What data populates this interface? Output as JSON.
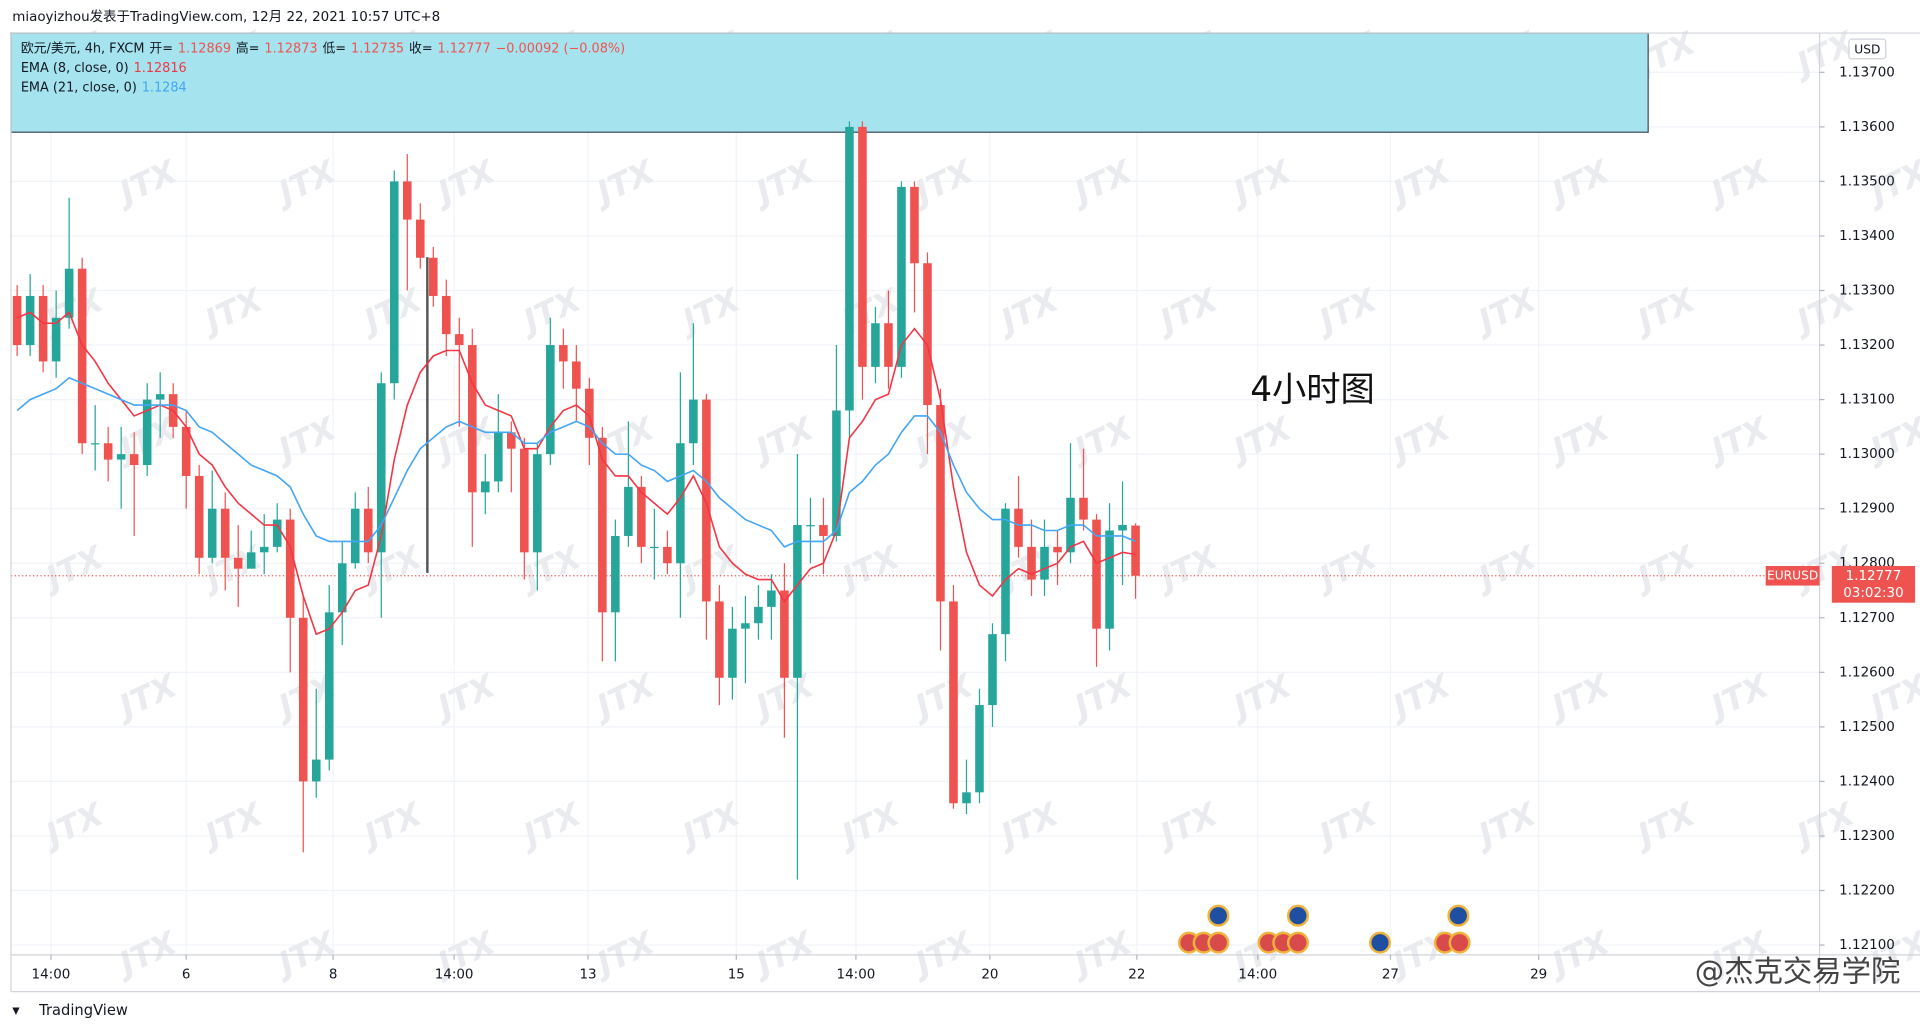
{
  "publisher_line": "miaoyizhou发表于TradingView.com, 12月 22, 2021 10:57 UTC+8",
  "branding": "TradingView",
  "watermark": "JTX",
  "corner_watermark": "@杰克交易学院",
  "chart_data": {
    "type": "candlestick",
    "symbol": "欧元/美元, 4h, FXCM",
    "ohlc_labels": [
      "开=",
      "高=",
      "低=",
      "收="
    ],
    "change_label": "−0.00092 (−0.08%)",
    "annotation": "4小时图",
    "currency": "USD",
    "symbol_tag": "EURUSD",
    "countdown": "03:02:30",
    "up_color": "#26a69a",
    "down_color": "#ef5350",
    "grid": true,
    "candles": {
      "open": [
        1.1329,
        1.132,
        1.1329,
        1.1317,
        1.1325,
        1.1334,
        1.1302,
        1.1302,
        1.1299,
        1.13,
        1.1298,
        1.131,
        1.1311,
        1.1305,
        1.1296,
        1.1281,
        1.129,
        1.1281,
        1.1279,
        1.1282,
        1.1283,
        1.1288,
        1.127,
        1.124,
        1.1244,
        1.1271,
        1.128,
        1.129,
        1.1282,
        1.1313,
        1.135,
        1.1343,
        1.1336,
        1.1329,
        1.1322,
        1.132,
        1.1293,
        1.1295,
        1.1304,
        1.1301,
        1.1282,
        1.13,
        1.132,
        1.1317,
        1.1312,
        1.1303,
        1.1271,
        1.1285,
        1.1294,
        1.1283,
        1.1283,
        1.128,
        1.1302,
        1.131,
        1.1273,
        1.1259,
        1.1268,
        1.1269,
        1.1272,
        1.1275,
        1.1259,
        1.1287,
        1.1287,
        1.1285,
        1.1308,
        1.136,
        1.1316,
        1.1324,
        1.1316,
        1.1349,
        1.1335,
        1.1309,
        1.1273,
        1.1236,
        1.1238,
        1.1254,
        1.1267,
        1.129,
        1.1283,
        1.1277,
        1.1283,
        1.1282,
        1.1292,
        1.1288,
        1.1268,
        1.1286,
        1.12869
      ],
      "high": [
        1.1331,
        1.1333,
        1.1331,
        1.133,
        1.1347,
        1.1336,
        1.1309,
        1.1305,
        1.1305,
        1.1304,
        1.1313,
        1.1315,
        1.1313,
        1.1308,
        1.1298,
        1.1297,
        1.1293,
        1.1287,
        1.1286,
        1.1289,
        1.1291,
        1.129,
        1.1274,
        1.1257,
        1.1276,
        1.1284,
        1.1293,
        1.1294,
        1.1315,
        1.1352,
        1.1355,
        1.1346,
        1.1338,
        1.1332,
        1.1325,
        1.1323,
        1.13,
        1.1311,
        1.1306,
        1.1303,
        1.1302,
        1.1325,
        1.1323,
        1.132,
        1.1314,
        1.1305,
        1.1288,
        1.1306,
        1.1296,
        1.129,
        1.1286,
        1.1315,
        1.1324,
        1.1311,
        1.1276,
        1.1272,
        1.1274,
        1.1276,
        1.1278,
        1.128,
        1.13,
        1.1292,
        1.1292,
        1.132,
        1.1361,
        1.1361,
        1.1327,
        1.133,
        1.135,
        1.135,
        1.1337,
        1.1312,
        1.1276,
        1.1244,
        1.1257,
        1.1269,
        1.1291,
        1.1296,
        1.1288,
        1.1288,
        1.1286,
        1.1302,
        1.1301,
        1.1289,
        1.1291,
        1.1295,
        1.12873
      ],
      "low": [
        1.1318,
        1.1318,
        1.1315,
        1.1314,
        1.1323,
        1.13,
        1.1297,
        1.1295,
        1.129,
        1.1285,
        1.1296,
        1.1303,
        1.1303,
        1.129,
        1.1278,
        1.128,
        1.1275,
        1.1272,
        1.1279,
        1.1278,
        1.1282,
        1.126,
        1.1227,
        1.1237,
        1.1242,
        1.1265,
        1.1279,
        1.128,
        1.127,
        1.131,
        1.133,
        1.1334,
        1.1327,
        1.1318,
        1.1305,
        1.1283,
        1.1289,
        1.1293,
        1.1293,
        1.1277,
        1.1275,
        1.1298,
        1.1312,
        1.1306,
        1.1298,
        1.1262,
        1.1262,
        1.1283,
        1.128,
        1.1277,
        1.1278,
        1.127,
        1.1298,
        1.1266,
        1.1254,
        1.1255,
        1.1258,
        1.1266,
        1.1266,
        1.1248,
        1.1222,
        1.128,
        1.1278,
        1.1284,
        1.1303,
        1.131,
        1.1313,
        1.1312,
        1.1314,
        1.1326,
        1.13,
        1.1264,
        1.1235,
        1.1234,
        1.1236,
        1.125,
        1.1262,
        1.1281,
        1.1274,
        1.1274,
        1.1276,
        1.128,
        1.1286,
        1.1261,
        1.1264,
        1.1276,
        1.12735
      ],
      "close": [
        1.132,
        1.1329,
        1.1317,
        1.1325,
        1.1334,
        1.1302,
        1.1302,
        1.1299,
        1.13,
        1.1298,
        1.131,
        1.1311,
        1.1305,
        1.1296,
        1.1281,
        1.129,
        1.1281,
        1.1279,
        1.1282,
        1.1283,
        1.1288,
        1.127,
        1.124,
        1.1244,
        1.1271,
        1.128,
        1.129,
        1.1282,
        1.1313,
        1.135,
        1.1343,
        1.1336,
        1.1329,
        1.1322,
        1.132,
        1.1293,
        1.1295,
        1.1304,
        1.1301,
        1.1282,
        1.13,
        1.132,
        1.1317,
        1.1312,
        1.1303,
        1.1271,
        1.1285,
        1.1294,
        1.1283,
        1.1283,
        1.128,
        1.1302,
        1.131,
        1.1273,
        1.1259,
        1.1268,
        1.1269,
        1.1272,
        1.1275,
        1.1259,
        1.1287,
        1.1287,
        1.1285,
        1.1308,
        1.136,
        1.1316,
        1.1324,
        1.1316,
        1.1349,
        1.1335,
        1.1309,
        1.1273,
        1.1236,
        1.1238,
        1.1254,
        1.1267,
        1.129,
        1.1283,
        1.1277,
        1.1283,
        1.1282,
        1.1292,
        1.1288,
        1.1268,
        1.1286,
        1.1287,
        1.12777
      ]
    },
    "series": [
      {
        "name": "EMA (8, close, 0)",
        "color": "#f23645",
        "values": [
          1.1325,
          1.1326,
          1.1324,
          1.1324,
          1.1326,
          1.132,
          1.1317,
          1.1313,
          1.131,
          1.1307,
          1.1308,
          1.1309,
          1.1308,
          1.1305,
          1.13,
          1.1298,
          1.1294,
          1.1291,
          1.1289,
          1.1287,
          1.1287,
          1.1283,
          1.1274,
          1.1267,
          1.1268,
          1.1271,
          1.1275,
          1.1276,
          1.1285,
          1.1299,
          1.1309,
          1.1315,
          1.1318,
          1.1319,
          1.1319,
          1.1313,
          1.1309,
          1.1308,
          1.1307,
          1.1301,
          1.1301,
          1.1305,
          1.1308,
          1.1309,
          1.1307,
          1.1299,
          1.1296,
          1.1296,
          1.1293,
          1.1291,
          1.1289,
          1.1292,
          1.1296,
          1.1291,
          1.1283,
          1.128,
          1.1278,
          1.1277,
          1.1277,
          1.1273,
          1.1276,
          1.1279,
          1.128,
          1.1286,
          1.1303,
          1.1306,
          1.131,
          1.1311,
          1.132,
          1.1323,
          1.132,
          1.131,
          1.1294,
          1.1282,
          1.1276,
          1.1274,
          1.1277,
          1.1279,
          1.1278,
          1.1279,
          1.128,
          1.1283,
          1.1284,
          1.128,
          1.1281,
          1.1282,
          1.12816
        ]
      },
      {
        "name": "EMA (21, close, 0)",
        "color": "#42a5f5",
        "values": [
          1.1308,
          1.131,
          1.1311,
          1.1312,
          1.1314,
          1.1313,
          1.1312,
          1.1311,
          1.131,
          1.1309,
          1.1309,
          1.1309,
          1.1309,
          1.1308,
          1.1305,
          1.1304,
          1.1302,
          1.13,
          1.1298,
          1.1297,
          1.1296,
          1.1294,
          1.1289,
          1.1285,
          1.1284,
          1.1284,
          1.1284,
          1.1284,
          1.1287,
          1.1292,
          1.1297,
          1.1301,
          1.1303,
          1.1305,
          1.1306,
          1.1305,
          1.1304,
          1.1304,
          1.1304,
          1.1302,
          1.1302,
          1.1304,
          1.1305,
          1.1306,
          1.1305,
          1.1302,
          1.13,
          1.13,
          1.1298,
          1.1297,
          1.1295,
          1.1296,
          1.1297,
          1.1295,
          1.1292,
          1.129,
          1.1288,
          1.1287,
          1.1286,
          1.1283,
          1.1284,
          1.1284,
          1.1284,
          1.1286,
          1.1293,
          1.1295,
          1.1298,
          1.13,
          1.1304,
          1.1307,
          1.1307,
          1.1304,
          1.1298,
          1.1293,
          1.129,
          1.1288,
          1.1288,
          1.1287,
          1.1287,
          1.1286,
          1.1286,
          1.1287,
          1.1287,
          1.1285,
          1.1285,
          1.1285,
          1.1284
        ]
      }
    ],
    "ylim": [
      1.12082,
      1.13772
    ],
    "yticks": [
      {
        "value": 1.121,
        "label": "1.12100"
      },
      {
        "value": 1.122,
        "label": "1.12200"
      },
      {
        "value": 1.123,
        "label": "1.12300"
      },
      {
        "value": 1.124,
        "label": "1.12400"
      },
      {
        "value": 1.125,
        "label": "1.12500"
      },
      {
        "value": 1.126,
        "label": "1.12600"
      },
      {
        "value": 1.127,
        "label": "1.12700"
      },
      {
        "value": 1.128,
        "label": "1.12800"
      },
      {
        "value": 1.129,
        "label": "1.12900"
      },
      {
        "value": 1.13,
        "label": "1.13000"
      },
      {
        "value": 1.131,
        "label": "1.13100"
      },
      {
        "value": 1.132,
        "label": "1.13200"
      },
      {
        "value": 1.133,
        "label": "1.13300"
      },
      {
        "value": 1.134,
        "label": "1.13400"
      },
      {
        "value": 1.135,
        "label": "1.13500"
      },
      {
        "value": 1.136,
        "label": "1.13600"
      },
      {
        "value": 1.137,
        "label": "1.13700"
      }
    ],
    "xlim": [
      -0.47,
      138.6
    ],
    "xticks": [
      {
        "value": 2.6,
        "label": "14:00"
      },
      {
        "value": 13,
        "label": "6"
      },
      {
        "value": 24.3,
        "label": "8"
      },
      {
        "value": 33.6,
        "label": "14:00"
      },
      {
        "value": 43.9,
        "label": "13"
      },
      {
        "value": 55.3,
        "label": "15"
      },
      {
        "value": 64.5,
        "label": "14:00"
      },
      {
        "value": 74.8,
        "label": "20"
      },
      {
        "value": 86.1,
        "label": "22"
      },
      {
        "value": 95.4,
        "label": "14:00"
      },
      {
        "value": 105.6,
        "label": "27"
      },
      {
        "value": 117,
        "label": "29"
      }
    ]
  }
}
